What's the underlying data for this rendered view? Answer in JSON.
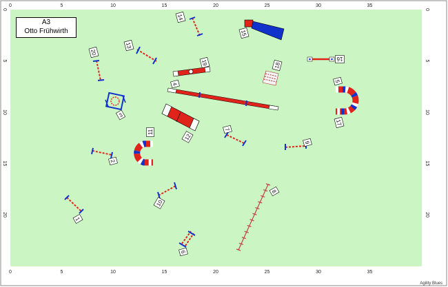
{
  "course": {
    "class_name": "A3",
    "judge": "Otto Frühwirth"
  },
  "credit": "Agility Blues",
  "ruler": {
    "x_labels": [
      "0",
      "5",
      "10",
      "15",
      "20",
      "25",
      "30",
      "35"
    ],
    "y_labels": [
      "0",
      "5",
      "10",
      "15",
      "20"
    ]
  },
  "colors": {
    "field": "#ccf5c4",
    "red": "#e0241b",
    "blue": "#1133cc",
    "grid": "#b8e4b0"
  },
  "obstacles": [
    {
      "num": "1",
      "kind": "jump"
    },
    {
      "num": "2",
      "kind": "jump"
    },
    {
      "num": "3",
      "kind": "tire"
    },
    {
      "num": "4",
      "kind": "dogwalk"
    },
    {
      "num": "5",
      "kind": "tunnel"
    },
    {
      "num": "6",
      "kind": "jump"
    },
    {
      "num": "7",
      "kind": "jump"
    },
    {
      "num": "8",
      "kind": "weave"
    },
    {
      "num": "9",
      "kind": "jump"
    },
    {
      "num": "10",
      "kind": "jump"
    },
    {
      "num": "11",
      "kind": "tunnel"
    },
    {
      "num": "12",
      "kind": "aframe"
    },
    {
      "num": "13",
      "kind": "jump"
    },
    {
      "num": "14",
      "kind": "jump"
    },
    {
      "num": "15",
      "kind": "chute"
    },
    {
      "num": "16",
      "kind": "long_jump_bar"
    },
    {
      "num": "17",
      "kind": "tunnel"
    },
    {
      "num": "18",
      "kind": "long_jump"
    },
    {
      "num": "19",
      "kind": "seesaw"
    },
    {
      "num": "20",
      "kind": "jump"
    }
  ]
}
